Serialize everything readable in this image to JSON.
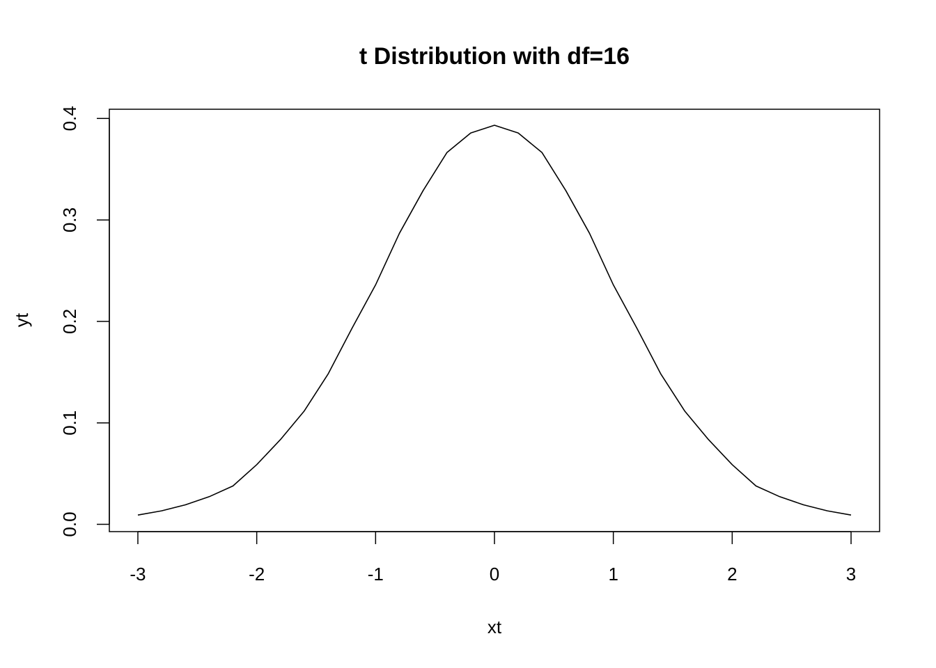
{
  "chart_data": {
    "type": "line",
    "title": "t Distribution with df=16",
    "xlabel": "xt",
    "ylabel": "yt",
    "xlim": [
      -3.24,
      3.24
    ],
    "ylim": [
      -0.0072,
      0.4091
    ],
    "x_ticks": [
      -3,
      -2,
      -1,
      0,
      1,
      2,
      3
    ],
    "x_tick_labels": [
      "-3",
      "-2",
      "-1",
      "0",
      "1",
      "2",
      "3"
    ],
    "y_ticks": [
      0.0,
      0.1,
      0.2,
      0.3,
      0.4
    ],
    "y_tick_labels": [
      "0.0",
      "0.1",
      "0.2",
      "0.3",
      "0.4"
    ],
    "grid": false,
    "legend": "none",
    "line_color": "#000000",
    "series": [
      {
        "x": [
          -3.0,
          -2.8,
          -2.6,
          -2.4,
          -2.2,
          -2.0,
          -1.8,
          -1.6,
          -1.4,
          -1.2,
          -1.0,
          -0.8,
          -0.6,
          -0.4,
          -0.2,
          0.0,
          0.2,
          0.4,
          0.6,
          0.8,
          1.0,
          1.2,
          1.4,
          1.6,
          1.8,
          2.0,
          2.2,
          2.4,
          2.6,
          2.8,
          3.0
        ],
        "y": [
          0.0091,
          0.0133,
          0.0192,
          0.0272,
          0.0378,
          0.0588,
          0.0836,
          0.1117,
          0.148,
          0.1929,
          0.236,
          0.2868,
          0.329,
          0.3664,
          0.3857,
          0.3933,
          0.3857,
          0.3664,
          0.329,
          0.2868,
          0.236,
          0.1929,
          0.148,
          0.1117,
          0.0836,
          0.0588,
          0.0378,
          0.0272,
          0.0192,
          0.0133,
          0.0091
        ]
      }
    ]
  }
}
